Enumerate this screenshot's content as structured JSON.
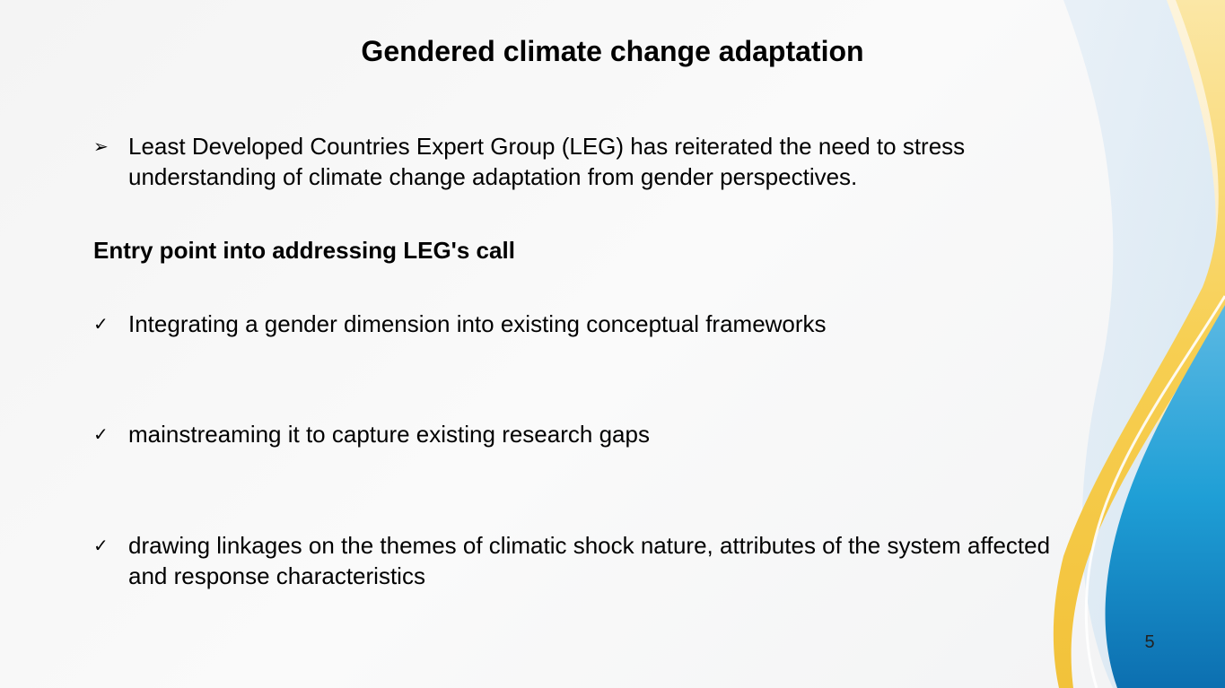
{
  "slide": {
    "title": "Gendered climate change adaptation",
    "intro_bullet": {
      "marker": "➢",
      "text": "Least Developed Countries Expert Group (LEG) has reiterated the need to stress understanding of climate change adaptation from gender perspectives."
    },
    "subheading": "Entry point into addressing LEG's call",
    "check_items": [
      {
        "marker": "✓",
        "text": "Integrating a gender dimension into  existing conceptual frameworks"
      },
      {
        "marker": "✓",
        "text": "mainstreaming it to capture existing research gaps"
      },
      {
        "marker": "✓",
        "text": "drawing linkages on the themes of climatic shock nature, attributes of the system affected and response characteristics"
      }
    ],
    "page_number": "5"
  },
  "colors": {
    "background": "#f5f5f5",
    "wave_yellow": "#f7cf52",
    "wave_light_blue": "#c8dff0",
    "wave_blue": "#1a8fc9",
    "wave_deep_blue": "#0f72b3"
  }
}
